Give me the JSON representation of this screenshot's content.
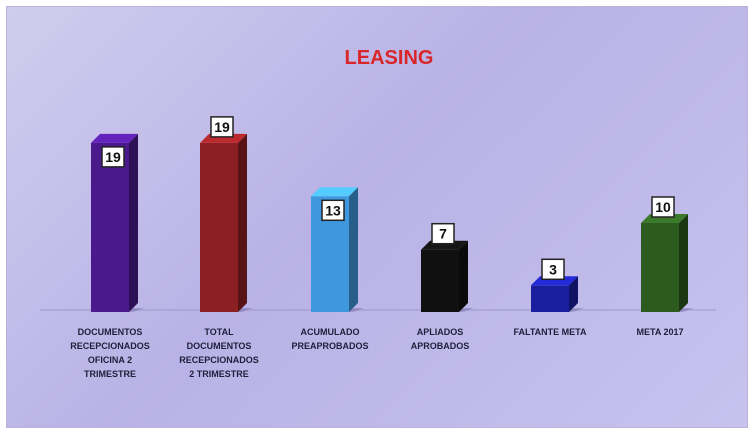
{
  "chart_data": {
    "type": "bar",
    "title": "LEASING",
    "categories": [
      [
        "DOCUMENTOS",
        "RECEPCIONADOS",
        "OFICINA 2",
        "TRIMESTRE"
      ],
      [
        "TOTAL",
        "DOCUMENTOS",
        "RECEPCIONADOS",
        "2 TRIMESTRE"
      ],
      [
        "ACUMULADO",
        "PREAPROBADOS"
      ],
      [
        "APLIADOS",
        "APROBADOS"
      ],
      [
        "FALTANTE META"
      ],
      [
        "META 2017"
      ]
    ],
    "values": [
      19,
      19,
      13,
      7,
      3,
      10
    ],
    "colors": [
      "#4a1a8c",
      "#8c1f22",
      "#3f97de",
      "#101010",
      "#1a1fa0",
      "#2c5a1f"
    ],
    "ylim": [
      0,
      20
    ],
    "grid": false,
    "legend": "none"
  }
}
